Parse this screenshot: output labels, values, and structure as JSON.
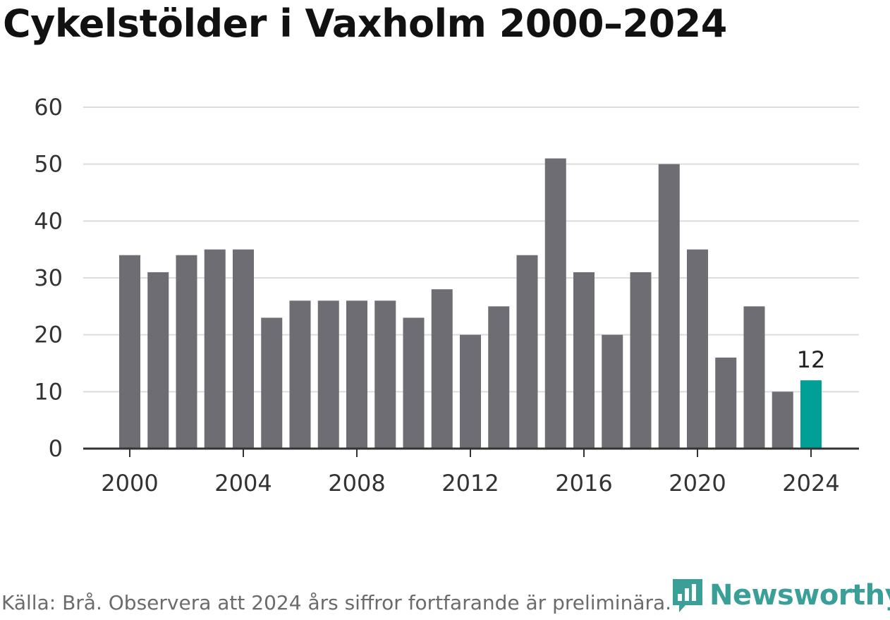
{
  "title": "Cykelstölder i Vaxholm 2000–2024",
  "source": "Källa: Brå. Observera att 2024 års siffror fortfarande är preliminära.",
  "brand": "Newsworthy",
  "colors": {
    "bar": "#6e6d73",
    "highlight": "#00a096",
    "grid": "#dcdcdc",
    "axis": "#333333",
    "brand": "#3a9f96"
  },
  "chart_data": {
    "type": "bar",
    "title": "Cykelstölder i Vaxholm 2000–2024",
    "xlabel": "",
    "ylabel": "",
    "ylim": [
      0,
      60
    ],
    "yticks": [
      0,
      10,
      20,
      30,
      40,
      50,
      60
    ],
    "xticks": [
      "2000",
      "2004",
      "2008",
      "2012",
      "2016",
      "2020",
      "2024"
    ],
    "categories": [
      "2000",
      "2001",
      "2002",
      "2003",
      "2004",
      "2005",
      "2006",
      "2007",
      "2008",
      "2009",
      "2010",
      "2011",
      "2012",
      "2013",
      "2014",
      "2015",
      "2016",
      "2017",
      "2018",
      "2019",
      "2020",
      "2021",
      "2022",
      "2023",
      "2024"
    ],
    "values": [
      34,
      31,
      34,
      35,
      35,
      23,
      26,
      26,
      26,
      26,
      23,
      28,
      20,
      25,
      34,
      51,
      31,
      20,
      31,
      50,
      35,
      16,
      25,
      10,
      12
    ],
    "highlight": "2024",
    "data_labels": [
      {
        "category": "2024",
        "label": "12"
      }
    ],
    "grid": true,
    "legend": "none"
  }
}
